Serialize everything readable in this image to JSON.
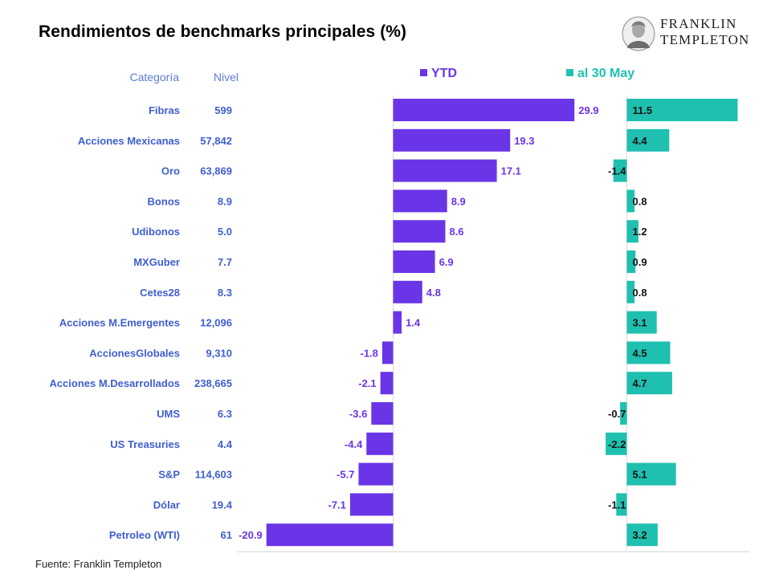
{
  "title": "Rendimientos de benchmarks principales (%)",
  "logo": {
    "line1": "FRANKLIN",
    "line2": "TEMPLETON"
  },
  "source": "Fuente: Franklin Templeton",
  "colors": {
    "ytd": "#6a35e6",
    "may": "#1fc0b0",
    "label": "#3f5ecf",
    "header": "#5b7bd5"
  },
  "chart_data": {
    "type": "bar",
    "orientation": "horizontal",
    "table_headers": {
      "category": "Categoría",
      "level": "Nivel"
    },
    "categories": [
      "Fibras",
      "Acciones Mexicanas",
      "Oro",
      "Bonos",
      "Udibonos",
      "MXGuber",
      "Cetes28",
      "Acciones M.Emergentes",
      "AccionesGlobales",
      "Acciones M.Desarrollados",
      "UMS",
      "US Treasuries",
      "S&P",
      "Dólar",
      "Petroleo (WTI)"
    ],
    "levels": [
      "599",
      "57,842",
      "63,869",
      "8.9",
      "5.0",
      "7.7",
      "8.3",
      "12,096",
      "9,310",
      "238,665",
      "6.3",
      "4.4",
      "114,603",
      "19.4",
      "61"
    ],
    "series": [
      {
        "name": "YTD",
        "values": [
          29.9,
          19.3,
          17.1,
          8.9,
          8.6,
          6.9,
          4.8,
          1.4,
          -1.8,
          -2.1,
          -3.6,
          -4.4,
          -5.7,
          -7.1,
          -20.9
        ]
      },
      {
        "name": "al 30 May",
        "values": [
          11.5,
          4.4,
          -1.4,
          0.8,
          1.2,
          0.9,
          0.8,
          3.1,
          4.5,
          4.7,
          -0.7,
          -2.2,
          5.1,
          -1.1,
          3.2
        ]
      }
    ],
    "legend_position": "top",
    "grid": false
  }
}
